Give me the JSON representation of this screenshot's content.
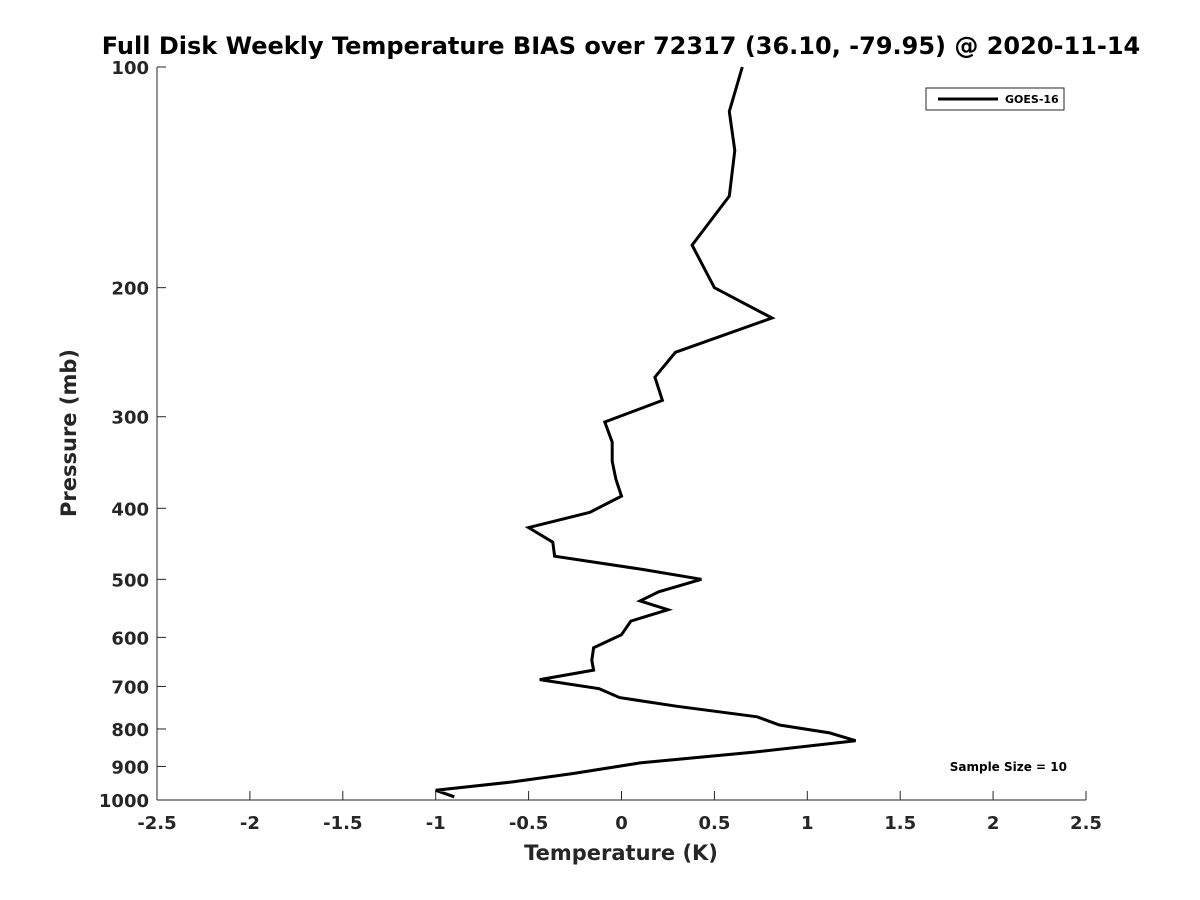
{
  "chart_data": {
    "type": "line",
    "title": "Full Disk Weekly Temperature BIAS over 72317 (36.10, -79.95) @ 2020-11-14",
    "xlabel": "Temperature (K)",
    "ylabel": "Pressure (mb)",
    "xlim": [
      -2.5,
      2.5
    ],
    "ylim": [
      100,
      1000
    ],
    "y_scale": "log",
    "y_reversed": true,
    "x_ticks": [
      "-2.5",
      "-2",
      "-1.5",
      "-1",
      "-0.5",
      "0",
      "0.5",
      "1",
      "1.5",
      "2",
      "2.5"
    ],
    "x_tick_values": [
      -2.5,
      -2,
      -1.5,
      -1,
      -0.5,
      0,
      0.5,
      1,
      1.5,
      2,
      2.5
    ],
    "y_ticks": [
      "100",
      "200",
      "300",
      "400",
      "500",
      "600",
      "700",
      "800",
      "900",
      "1000"
    ],
    "y_tick_values": [
      100,
      200,
      300,
      400,
      500,
      600,
      700,
      800,
      900,
      1000
    ],
    "grid": false,
    "legend_position": "top-right",
    "annotation": "Sample Size = 10",
    "series": [
      {
        "name": "GOES-16",
        "color": "#000000",
        "x": [
          0.65,
          0.58,
          0.61,
          0.58,
          0.38,
          0.5,
          0.81,
          0.29,
          0.18,
          0.22,
          -0.09,
          -0.05,
          -0.05,
          -0.03,
          0.0,
          -0.17,
          -0.5,
          -0.37,
          -0.36,
          0.12,
          0.43,
          0.2,
          0.1,
          0.25,
          0.05,
          0.0,
          -0.15,
          -0.16,
          -0.15,
          -0.44,
          -0.12,
          -0.01,
          0.3,
          0.73,
          0.85,
          1.12,
          1.26,
          0.72,
          0.1,
          -0.26,
          -0.59,
          -1.0,
          -0.9
        ],
        "y": [
          100,
          115,
          130,
          150,
          175,
          200,
          220,
          245,
          265,
          285,
          305,
          325,
          345,
          365,
          385,
          405,
          425,
          445,
          465,
          485,
          500,
          520,
          535,
          550,
          570,
          595,
          620,
          645,
          665,
          685,
          705,
          725,
          745,
          770,
          790,
          810,
          830,
          860,
          890,
          920,
          945,
          970,
          990
        ]
      }
    ]
  }
}
